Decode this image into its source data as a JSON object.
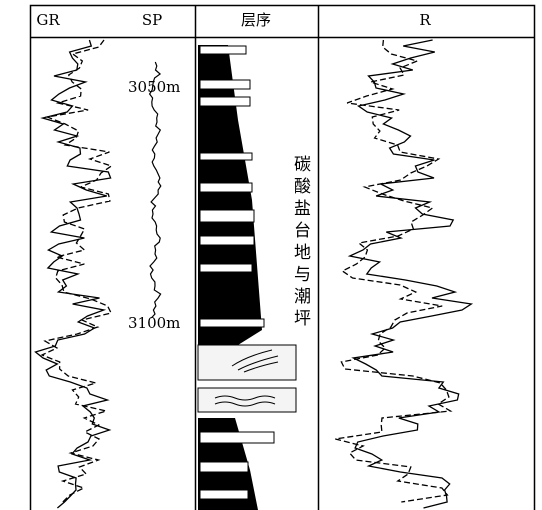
{
  "headers": [
    "GR",
    "SP",
    "层序",
    "R"
  ],
  "depth_labels": [
    "3050m",
    "3100m"
  ],
  "facies": "碳酸盐台地与潮坪"
}
